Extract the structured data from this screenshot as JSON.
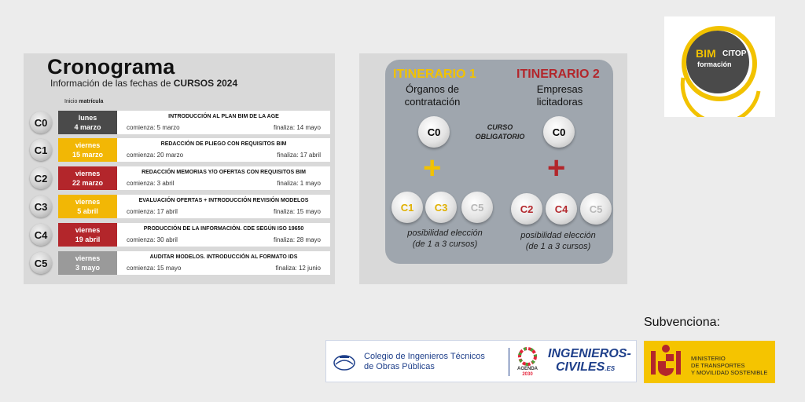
{
  "cronograma": {
    "title": "Cronograma",
    "subtitle_prefix": "Información de las fechas de ",
    "subtitle_bold": "CURSOS 2024",
    "inicio_prefix": "Inicio ",
    "inicio_bold": "matrícula",
    "rows": [
      {
        "code": "C0",
        "day": "lunes",
        "date": "4 marzo",
        "color": "#4a4a4a",
        "title": "INTRODUCCIÓN AL PLAN BIM DE LA AGE",
        "comienza": "comienza: 5 marzo",
        "finaliza": "finaliza: 14 mayo"
      },
      {
        "code": "C1",
        "day": "viernes",
        "date": "15 marzo",
        "color": "#f2b705",
        "title": "REDACCIÓN DE PLIEGO CON REQUISITOS BIM",
        "comienza": "comienza: 20 marzo",
        "finaliza": "finaliza: 17 abril"
      },
      {
        "code": "C2",
        "day": "viernes",
        "date": "22 marzo",
        "color": "#b3262b",
        "title": "REDACCIÓN MEMORIAS Y/O OFERTAS CON REQUISITOS BIM",
        "comienza": "comienza: 3 abril",
        "finaliza": "finaliza: 1 mayo"
      },
      {
        "code": "C3",
        "day": "viernes",
        "date": "5 abril",
        "color": "#f2b705",
        "title": "EVALUACIÓN OFERTAS + INTRODUCCIÓN REVISIÓN MODELOS",
        "comienza": "comienza: 17 abril",
        "finaliza": "finaliza: 15 mayo"
      },
      {
        "code": "C4",
        "day": "viernes",
        "date": "19 abril",
        "color": "#b3262b",
        "title": "PRODUCCIÓN DE LA INFORMACIÓN. CDE SEGÚN ISO 19650",
        "comienza": "comienza: 30 abril",
        "finaliza": "finaliza: 28 mayo"
      },
      {
        "code": "C5",
        "day": "viernes",
        "date": "3 mayo",
        "color": "#9a9a9a",
        "title": "AUDITAR MODELOS. INTRODUCCIÓN AL FORMATO IDS",
        "comienza": "comienza: 15 mayo",
        "finaliza": "finaliza: 12 junio"
      }
    ]
  },
  "itinerario1": {
    "title": "ITINERARIO 1",
    "subtitle_line1": "Órganos de",
    "subtitle_line2": "contratación",
    "color": "#f2c200",
    "base_course": "C0",
    "plus_color": "#f2c200",
    "courses": [
      {
        "code": "C1",
        "color": "#e0b000"
      },
      {
        "code": "C3",
        "color": "#e0b000"
      },
      {
        "code": "C5",
        "color": "#b8b8b8"
      }
    ],
    "posibilidad_line1": "posibilidad elección",
    "posibilidad_line2": "(de 1 a 3 cursos)"
  },
  "itinerario2": {
    "title": "ITINERARIO 2",
    "subtitle_line1": "Empresas",
    "subtitle_line2": "licitadoras",
    "color": "#b3262b",
    "base_course": "C0",
    "plus_color": "#b3262b",
    "courses": [
      {
        "code": "C2",
        "color": "#b3262b"
      },
      {
        "code": "C4",
        "color": "#b3262b"
      },
      {
        "code": "C5",
        "color": "#b8b8b8"
      }
    ],
    "posibilidad_line1": "posibilidad elección",
    "posibilidad_line2": "(de 1 a 3 cursos)"
  },
  "curso_obligatorio_line1": "CURSO",
  "curso_obligatorio_line2": "OBLIGATORIO",
  "bim_logo": {
    "bim": "BIM",
    "citop": "CITOP",
    "formacion": "formación"
  },
  "subvenciona": "Subvenciona:",
  "colegio": {
    "line1": "Colegio de Ingenieros Técnicos",
    "line2": "de Obras Públicas"
  },
  "agenda": {
    "line1": "AGENDA",
    "line2": "2030"
  },
  "ingenieros": {
    "line1": "INGENIEROS-",
    "line2": "CIVILES",
    "suffix": ".ES"
  },
  "ministerio": {
    "line1": "MINISTERIO",
    "line2": "DE TRANSPORTES",
    "line3": "Y MOVILIDAD SOSTENIBLE"
  }
}
